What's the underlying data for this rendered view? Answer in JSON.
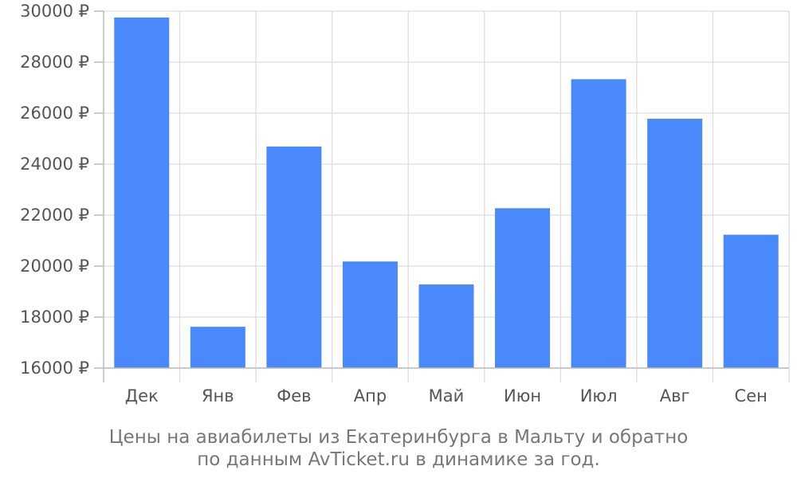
{
  "chart_data": {
    "type": "bar",
    "categories": [
      "Дек",
      "Янв",
      "Фев",
      "Апр",
      "Май",
      "Июн",
      "Июл",
      "Авг",
      "Сен"
    ],
    "values": [
      29750,
      17620,
      24690,
      20180,
      19280,
      22270,
      27330,
      25780,
      21230
    ],
    "ylim": [
      16000,
      30000
    ],
    "yticks": [
      16000,
      18000,
      20000,
      22000,
      24000,
      26000,
      28000,
      30000
    ],
    "ytick_labels": [
      "16000 ₽",
      "18000 ₽",
      "20000 ₽",
      "22000 ₽",
      "24000 ₽",
      "26000 ₽",
      "28000 ₽",
      "30000 ₽"
    ],
    "grid": true,
    "bar_color": "#4a89fb"
  },
  "caption": {
    "line1": "Цены на авиабилеты из Екатеринбурга в Мальту и обратно",
    "line2": "по данным AvTicket.ru в динамике за год."
  }
}
